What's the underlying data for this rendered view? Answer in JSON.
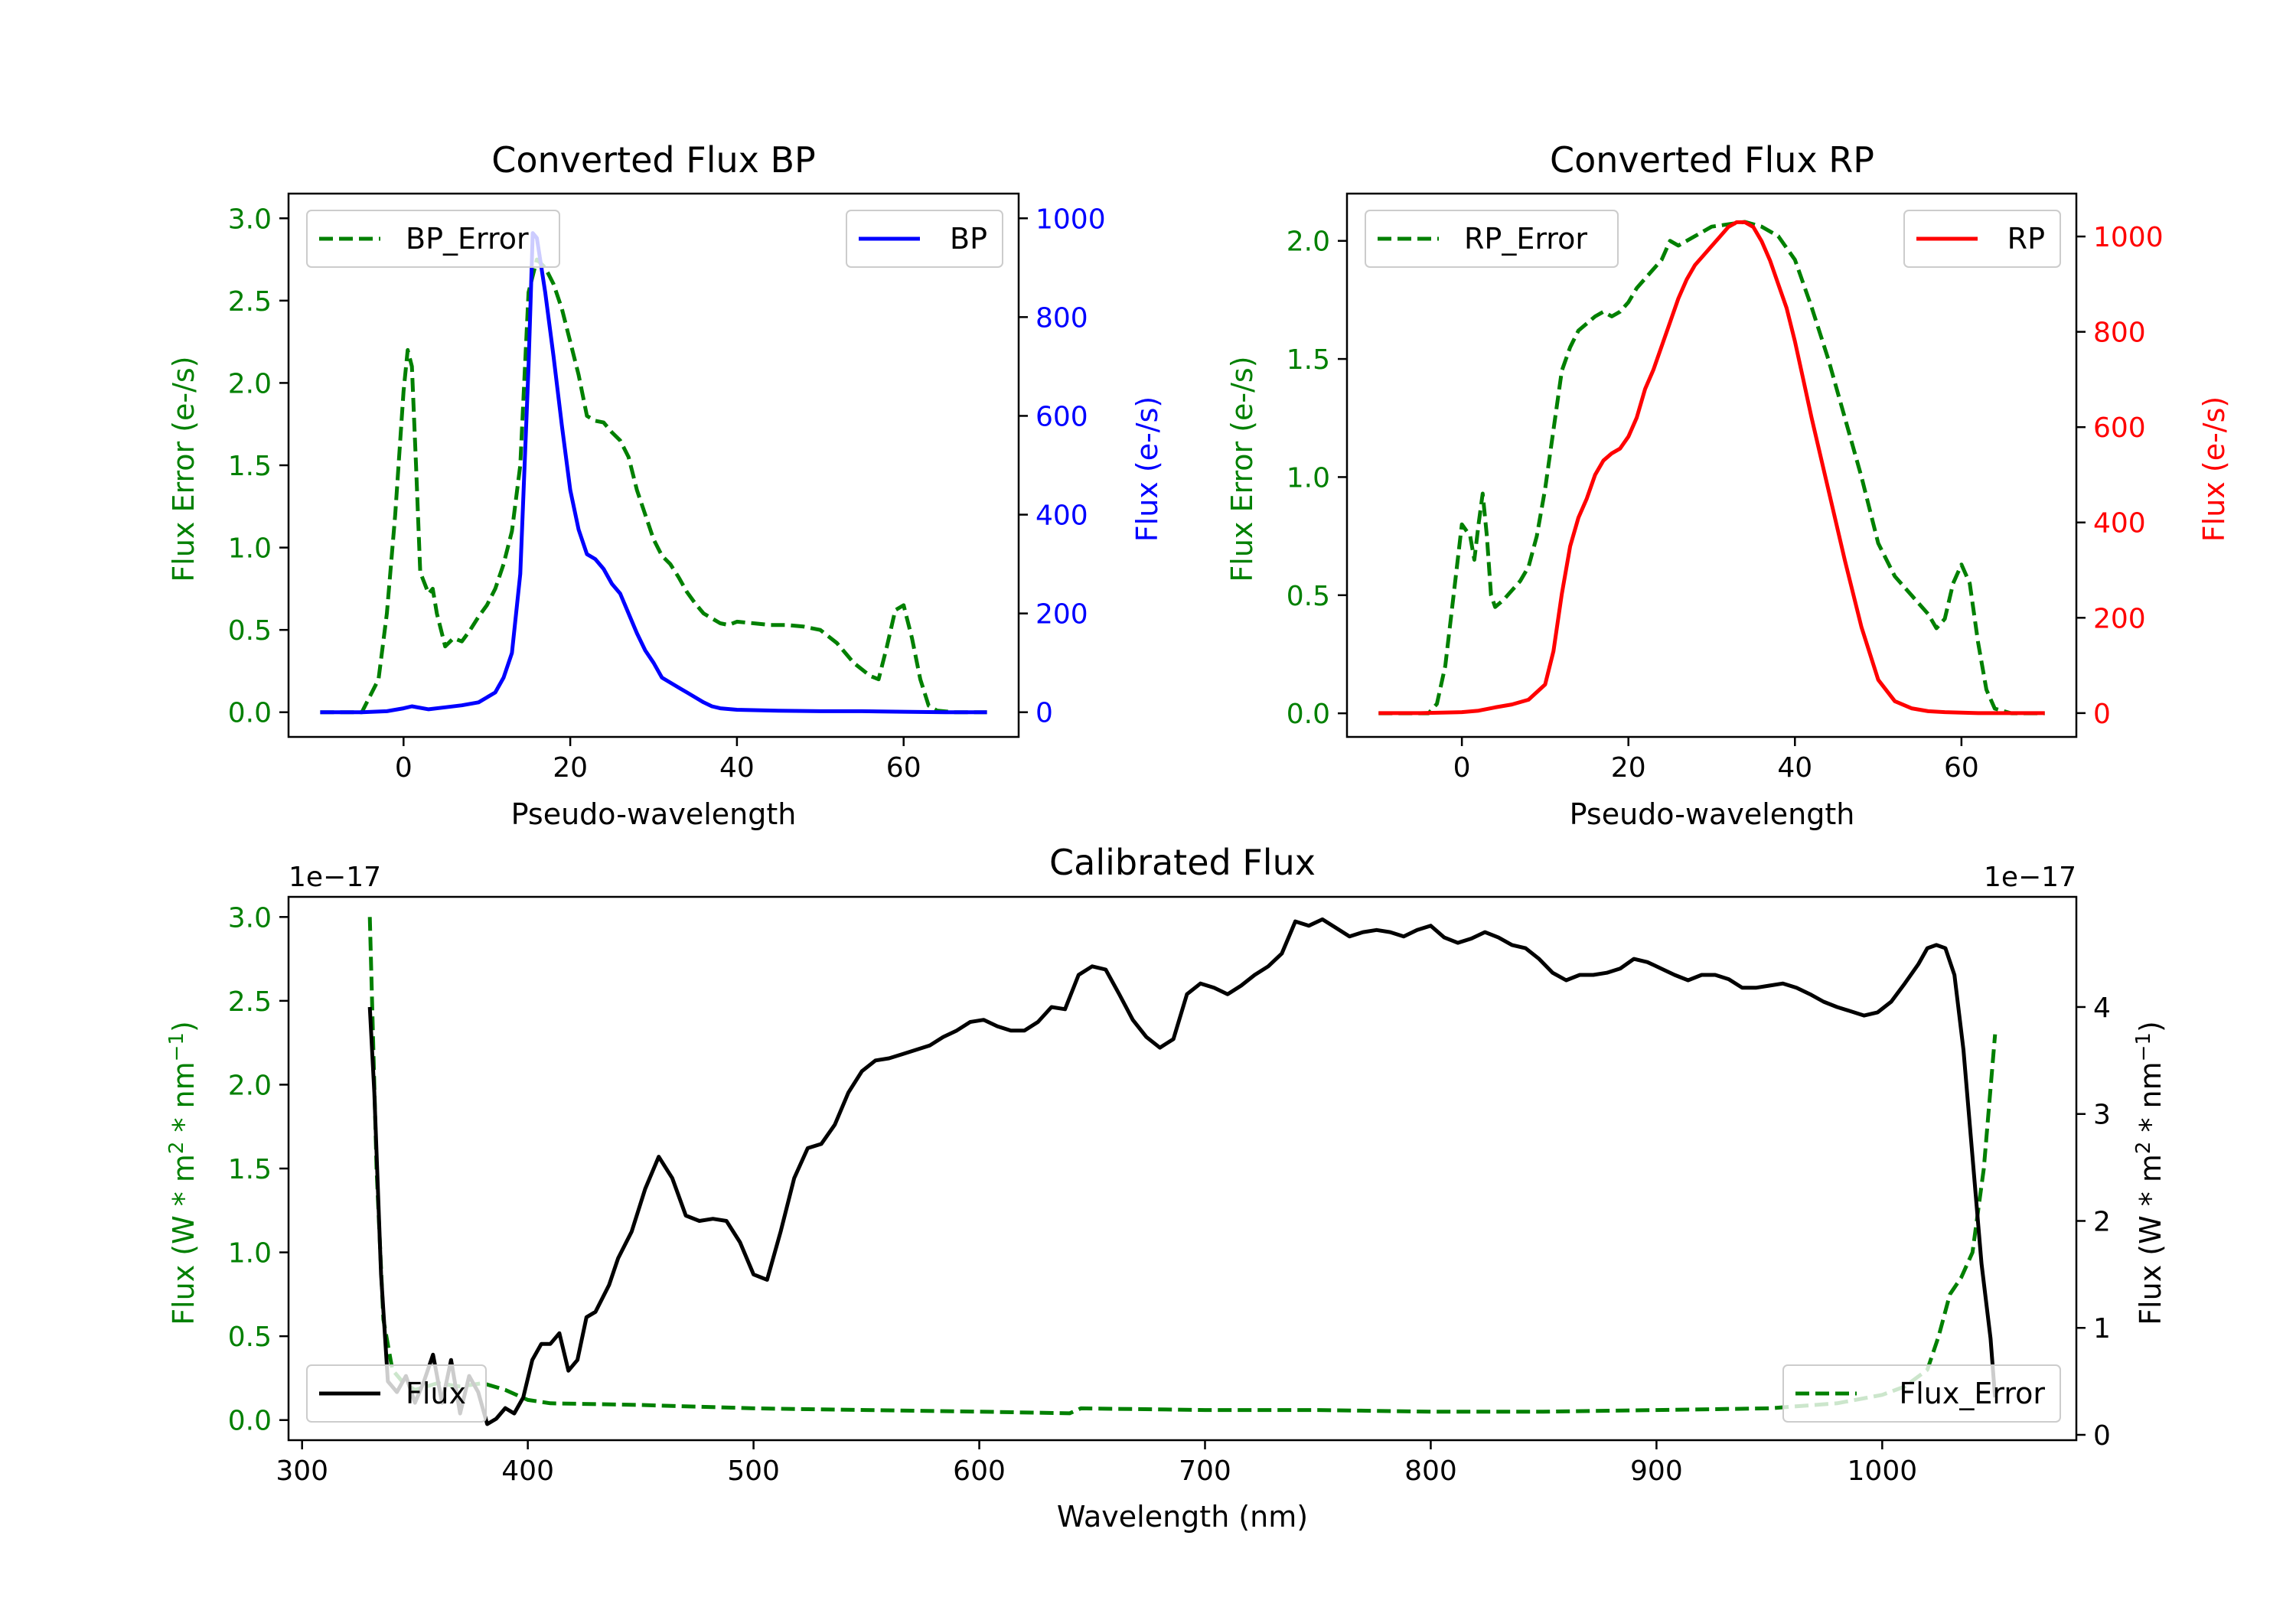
{
  "colors": {
    "bp": "#0000ff",
    "rp": "#ff0000",
    "error": "#008000",
    "flux": "#000000"
  },
  "chart_data": [
    {
      "type": "line",
      "title": "Converted Flux BP",
      "xlabel": "Pseudo-wavelength",
      "ylabel_left": "Flux Error (e-/s)",
      "ylabel_right": "Flux (e-/s)",
      "xlim": [
        -13.8,
        73.8
      ],
      "ylim_left": [
        -0.15,
        3.15
      ],
      "ylim_right": [
        -50,
        1050
      ],
      "xticks": [
        0,
        20,
        40,
        60
      ],
      "xtick_labels": [
        "0",
        "20",
        "40",
        "60"
      ],
      "yticks_left": [
        0.0,
        0.5,
        1.0,
        1.5,
        2.0,
        2.5,
        3.0
      ],
      "ytick_labels_left": [
        "0.0",
        "0.5",
        "1.0",
        "1.5",
        "2.0",
        "2.5",
        "3.0"
      ],
      "yticks_right": [
        0,
        200,
        400,
        600,
        800,
        1000
      ],
      "ytick_labels_right": [
        "0",
        "200",
        "400",
        "600",
        "800",
        "1000"
      ],
      "legend_left": "BP_Error",
      "legend_right": "BP",
      "series": [
        {
          "name": "BP_Error",
          "axis": "left",
          "style": "dashed",
          "color": "#008000",
          "x": [
            -10,
            -5,
            -3,
            -2,
            -1,
            0,
            0.5,
            1,
            1.5,
            2,
            3,
            3.5,
            4,
            5,
            6,
            7,
            8,
            9,
            10,
            11,
            12,
            13,
            14,
            15,
            16,
            17,
            18,
            19,
            20,
            21,
            22,
            23,
            24,
            25,
            26,
            27,
            28,
            29,
            30,
            31,
            32,
            33,
            34,
            35,
            36,
            37,
            38,
            39,
            40,
            42,
            44,
            46,
            48,
            50,
            52,
            54,
            56,
            57,
            58,
            59,
            60,
            61,
            62,
            63,
            64,
            66,
            68,
            70
          ],
          "y": [
            0,
            0,
            0.2,
            0.6,
            1.2,
            1.95,
            2.2,
            2.1,
            1.5,
            0.85,
            0.72,
            0.75,
            0.6,
            0.4,
            0.45,
            0.43,
            0.5,
            0.58,
            0.65,
            0.75,
            0.9,
            1.1,
            1.5,
            2.55,
            2.75,
            2.7,
            2.6,
            2.45,
            2.25,
            2.05,
            1.8,
            1.77,
            1.76,
            1.7,
            1.65,
            1.55,
            1.35,
            1.2,
            1.05,
            0.95,
            0.9,
            0.82,
            0.73,
            0.66,
            0.6,
            0.57,
            0.54,
            0.53,
            0.55,
            0.54,
            0.53,
            0.53,
            0.52,
            0.5,
            0.42,
            0.3,
            0.22,
            0.2,
            0.4,
            0.62,
            0.65,
            0.45,
            0.2,
            0.04,
            0.01,
            0,
            0,
            0
          ]
        },
        {
          "name": "BP",
          "axis": "right",
          "style": "solid",
          "color": "#0000ff",
          "x": [
            -10,
            -5,
            -2,
            0,
            1,
            3,
            5,
            7,
            9,
            11,
            12,
            13,
            14,
            15,
            15.5,
            16,
            17,
            18,
            19,
            20,
            21,
            22,
            23,
            24,
            25,
            26,
            27,
            28,
            29,
            30,
            31,
            32,
            33,
            34,
            35,
            36,
            37,
            38,
            40,
            45,
            50,
            55,
            60,
            65,
            70
          ],
          "y": [
            0,
            0,
            2,
            8,
            12,
            6,
            10,
            14,
            20,
            40,
            70,
            120,
            280,
            700,
            970,
            960,
            850,
            720,
            580,
            450,
            370,
            320,
            310,
            290,
            260,
            240,
            200,
            160,
            125,
            100,
            70,
            60,
            50,
            40,
            30,
            20,
            12,
            8,
            5,
            3,
            2,
            2,
            1,
            0,
            0
          ]
        }
      ]
    },
    {
      "type": "line",
      "title": "Converted Flux RP",
      "xlabel": "Pseudo-wavelength",
      "ylabel_left": "Flux Error (e-/s)",
      "ylabel_right": "Flux (e-/s)",
      "xlim": [
        -13.8,
        73.8
      ],
      "ylim_left": [
        -0.1,
        2.2
      ],
      "ylim_right": [
        -50,
        1090
      ],
      "xticks": [
        0,
        20,
        40,
        60
      ],
      "xtick_labels": [
        "0",
        "20",
        "40",
        "60"
      ],
      "yticks_left": [
        0.0,
        0.5,
        1.0,
        1.5,
        2.0
      ],
      "ytick_labels_left": [
        "0.0",
        "0.5",
        "1.0",
        "1.5",
        "2.0"
      ],
      "yticks_right": [
        0,
        200,
        400,
        600,
        800,
        1000
      ],
      "ytick_labels_right": [
        "0",
        "200",
        "400",
        "600",
        "800",
        "1000"
      ],
      "legend_left": "RP_Error",
      "legend_right": "RP",
      "series": [
        {
          "name": "RP_Error",
          "axis": "left",
          "style": "dashed",
          "color": "#008000",
          "x": [
            -10,
            -4,
            -3,
            -2,
            -1,
            0,
            1,
            1.5,
            2,
            2.5,
            3,
            3.5,
            4,
            5,
            6,
            7,
            8,
            9,
            10,
            11,
            12,
            13,
            14,
            15,
            16,
            17,
            18,
            19,
            20,
            21,
            22,
            23,
            24,
            25,
            26,
            27,
            28,
            29,
            30,
            32,
            34,
            36,
            38,
            40,
            42,
            44,
            46,
            48,
            50,
            52,
            54,
            56,
            57,
            58,
            59,
            60,
            61,
            62,
            63,
            64,
            66,
            70
          ],
          "y": [
            0,
            0,
            0.04,
            0.2,
            0.5,
            0.8,
            0.75,
            0.65,
            0.8,
            0.93,
            0.75,
            0.5,
            0.45,
            0.48,
            0.52,
            0.56,
            0.62,
            0.75,
            0.95,
            1.2,
            1.45,
            1.55,
            1.62,
            1.65,
            1.68,
            1.7,
            1.68,
            1.7,
            1.74,
            1.8,
            1.84,
            1.88,
            1.92,
            2.0,
            1.98,
            2.0,
            2.02,
            2.04,
            2.06,
            2.07,
            2.08,
            2.06,
            2.02,
            1.92,
            1.72,
            1.5,
            1.25,
            1.0,
            0.72,
            0.58,
            0.5,
            0.42,
            0.36,
            0.4,
            0.55,
            0.63,
            0.55,
            0.3,
            0.1,
            0.02,
            0,
            0
          ]
        },
        {
          "name": "RP",
          "axis": "right",
          "style": "solid",
          "color": "#ff0000",
          "x": [
            -10,
            -5,
            0,
            2,
            4,
            6,
            8,
            10,
            11,
            12,
            13,
            14,
            15,
            16,
            17,
            18,
            19,
            20,
            21,
            22,
            23,
            24,
            25,
            26,
            27,
            28,
            29,
            30,
            31,
            32,
            33,
            34,
            35,
            36,
            37,
            38,
            39,
            40,
            41,
            42,
            44,
            46,
            48,
            50,
            52,
            54,
            56,
            58,
            60,
            62,
            65,
            70
          ],
          "y": [
            0,
            0,
            2,
            5,
            12,
            18,
            28,
            60,
            130,
            250,
            350,
            410,
            450,
            500,
            530,
            545,
            555,
            580,
            620,
            680,
            720,
            770,
            820,
            870,
            910,
            940,
            960,
            980,
            1000,
            1020,
            1030,
            1030,
            1020,
            990,
            950,
            900,
            850,
            780,
            700,
            620,
            470,
            320,
            180,
            70,
            25,
            10,
            4,
            2,
            1,
            0,
            0,
            0
          ]
        }
      ]
    },
    {
      "type": "line",
      "title": "Calibrated Flux",
      "xlabel": "Wavelength (nm)",
      "ylabel_left": "Flux (W * m^2 * nm^-1)",
      "ylabel_right": "Flux (W * m^2 * nm^-1)",
      "offset_left": "1e−17",
      "offset_right": "1e−17",
      "xlim": [
        294,
        1086
      ],
      "ylim_left": [
        -0.12,
        3.12
      ],
      "ylim_right": [
        -0.05,
        5.03
      ],
      "xticks": [
        300,
        400,
        500,
        600,
        700,
        800,
        900,
        1000
      ],
      "xtick_labels": [
        "300",
        "400",
        "500",
        "600",
        "700",
        "800",
        "900",
        "1000"
      ],
      "yticks_left": [
        0.0,
        0.5,
        1.0,
        1.5,
        2.0,
        2.5,
        3.0
      ],
      "ytick_labels_left": [
        "0.0",
        "0.5",
        "1.0",
        "1.5",
        "2.0",
        "2.5",
        "3.0"
      ],
      "yticks_right": [
        0,
        1,
        2,
        3,
        4
      ],
      "ytick_labels_right": [
        "0",
        "1",
        "2",
        "3",
        "4"
      ],
      "legend_left": "Flux",
      "legend_right": "Flux_Error",
      "series": [
        {
          "name": "Flux_Error",
          "axis": "left",
          "style": "dashed",
          "color": "#008000",
          "x": [
            330,
            333,
            336,
            340,
            345,
            350,
            360,
            370,
            380,
            390,
            400,
            410,
            450,
            500,
            550,
            600,
            640,
            645,
            700,
            750,
            800,
            850,
            900,
            950,
            980,
            1000,
            1010,
            1020,
            1025,
            1030,
            1035,
            1040,
            1045,
            1050
          ],
          "y": [
            3.0,
            1.5,
            0.6,
            0.3,
            0.22,
            0.18,
            0.22,
            0.2,
            0.22,
            0.18,
            0.12,
            0.1,
            0.09,
            0.07,
            0.06,
            0.05,
            0.04,
            0.07,
            0.06,
            0.06,
            0.05,
            0.05,
            0.06,
            0.07,
            0.1,
            0.15,
            0.2,
            0.3,
            0.5,
            0.75,
            0.85,
            1.0,
            1.5,
            2.3
          ]
        },
        {
          "name": "Flux",
          "axis": "right",
          "style": "solid",
          "color": "#000000",
          "x": [
            330,
            332,
            335,
            338,
            342,
            346,
            350,
            354,
            358,
            362,
            366,
            370,
            374,
            378,
            382,
            386,
            390,
            394,
            398,
            402,
            406,
            410,
            414,
            418,
            422,
            426,
            430,
            436,
            440,
            446,
            452,
            458,
            464,
            470,
            476,
            482,
            488,
            494,
            500,
            506,
            512,
            518,
            524,
            530,
            536,
            542,
            548,
            554,
            560,
            566,
            572,
            578,
            584,
            590,
            596,
            602,
            608,
            614,
            620,
            626,
            632,
            638,
            644,
            650,
            656,
            662,
            668,
            674,
            680,
            686,
            692,
            698,
            704,
            710,
            716,
            722,
            728,
            734,
            740,
            746,
            752,
            758,
            764,
            770,
            776,
            782,
            788,
            794,
            800,
            806,
            812,
            818,
            824,
            830,
            836,
            842,
            848,
            854,
            860,
            866,
            872,
            878,
            884,
            890,
            896,
            902,
            908,
            914,
            920,
            926,
            932,
            938,
            944,
            950,
            956,
            962,
            968,
            974,
            980,
            986,
            992,
            998,
            1004,
            1010,
            1016,
            1020,
            1024,
            1028,
            1032,
            1036,
            1040,
            1044,
            1048,
            1050
          ],
          "y": [
            4.0,
            3.2,
            1.5,
            0.5,
            0.4,
            0.55,
            0.3,
            0.5,
            0.75,
            0.3,
            0.7,
            0.2,
            0.55,
            0.4,
            0.1,
            0.15,
            0.25,
            0.2,
            0.35,
            0.7,
            0.85,
            0.85,
            0.95,
            0.6,
            0.7,
            1.1,
            1.15,
            1.4,
            1.65,
            1.9,
            2.3,
            2.6,
            2.4,
            2.05,
            2.0,
            2.02,
            2.0,
            1.8,
            1.5,
            1.45,
            1.9,
            2.4,
            2.68,
            2.72,
            2.9,
            3.2,
            3.4,
            3.5,
            3.52,
            3.56,
            3.6,
            3.64,
            3.72,
            3.78,
            3.86,
            3.88,
            3.82,
            3.78,
            3.78,
            3.86,
            4.0,
            3.98,
            4.3,
            4.38,
            4.35,
            4.12,
            3.88,
            3.72,
            3.62,
            3.7,
            4.12,
            4.22,
            4.18,
            4.12,
            4.2,
            4.3,
            4.38,
            4.5,
            4.8,
            4.76,
            4.82,
            4.74,
            4.66,
            4.7,
            4.72,
            4.7,
            4.66,
            4.72,
            4.76,
            4.65,
            4.6,
            4.64,
            4.7,
            4.65,
            4.58,
            4.55,
            4.45,
            4.32,
            4.25,
            4.3,
            4.3,
            4.32,
            4.36,
            4.45,
            4.42,
            4.36,
            4.3,
            4.25,
            4.3,
            4.3,
            4.26,
            4.18,
            4.18,
            4.2,
            4.22,
            4.18,
            4.12,
            4.05,
            4.0,
            3.96,
            3.92,
            3.95,
            4.05,
            4.22,
            4.4,
            4.55,
            4.58,
            4.55,
            4.3,
            3.6,
            2.6,
            1.6,
            0.9,
            0.35
          ]
        }
      ]
    }
  ]
}
